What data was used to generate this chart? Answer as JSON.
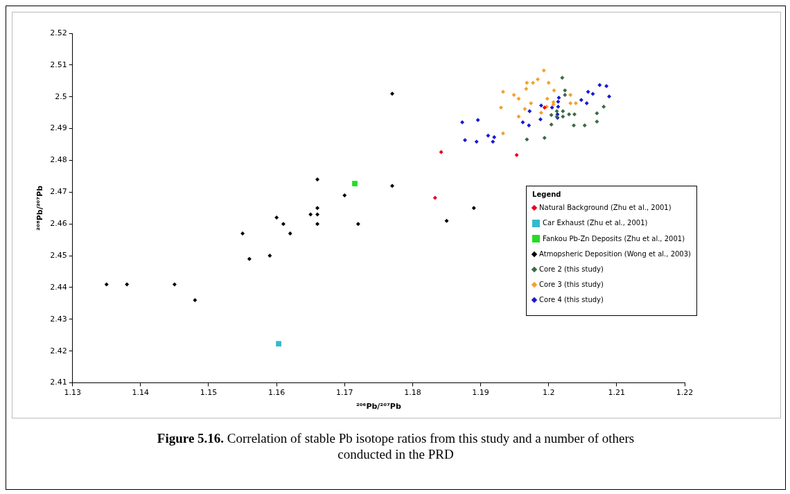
{
  "chart_data": {
    "type": "scatter",
    "title": "Figure 5.16.",
    "subtitle": "Correlation of stable Pb isotope ratios from this study and a number of others conducted in the PRD",
    "xlabel": "²⁰⁶Pb/²⁰⁷Pb",
    "ylabel": "²⁰⁸Pb/²⁰⁷Pb",
    "legend_title": "Legend",
    "legend": "right",
    "grid": false,
    "xlim": [
      1.13,
      1.22
    ],
    "xticks": [
      1.13,
      1.14,
      1.15,
      1.16,
      1.17,
      1.18,
      1.19,
      1.2,
      1.21,
      1.22
    ],
    "ylim": [
      2.41,
      2.52
    ],
    "yticks": [
      2.41,
      2.42,
      2.43,
      2.44,
      2.45,
      2.46,
      2.47,
      2.48,
      2.49,
      2.5,
      2.51,
      2.52
    ],
    "series": [
      {
        "name": "Natural Background (Zhu et al., 2001)",
        "color": "#e8001c",
        "marker": "diamond",
        "x": [
          1.1842,
          1.1833,
          1.1953,
          1.1994
        ],
        "values": [
          2.4826,
          2.4682,
          2.4817,
          2.4966
        ]
      },
      {
        "name": "Car Exhaust (Zhu et al., 2001)",
        "color": "#33bbcc",
        "marker": "square",
        "x": [
          1.1603
        ],
        "values": [
          2.4223
        ]
      },
      {
        "name": "Fankou Pb-Zn Deposits (Zhu et al., 2001)",
        "color": "#22dd22",
        "marker": "square",
        "x": [
          1.1715
        ],
        "values": [
          2.4727
        ]
      },
      {
        "name": "Atmopsheric Deposition (Wong et al., 2003)",
        "color": "#000000",
        "marker": "diamond",
        "x": [
          1.135,
          1.138,
          1.145,
          1.148,
          1.155,
          1.156,
          1.159,
          1.16,
          1.161,
          1.162,
          1.165,
          1.166,
          1.166,
          1.166,
          1.166,
          1.17,
          1.172,
          1.177,
          1.177,
          1.185,
          1.189
        ],
        "values": [
          2.441,
          2.441,
          2.441,
          2.436,
          2.457,
          2.449,
          2.45,
          2.462,
          2.46,
          2.457,
          2.463,
          2.465,
          2.463,
          2.46,
          2.474,
          2.469,
          2.46,
          2.472,
          2.501,
          2.461,
          2.465
        ]
      },
      {
        "name": "Core 2 (this study)",
        "color": "#3a6b45",
        "marker": "diamond",
        "x": [
          1.2024,
          1.2024,
          1.2021,
          1.2021,
          1.2012,
          1.2012,
          1.203,
          1.2038,
          1.2004,
          1.2004,
          1.2037,
          1.2053,
          1.2071,
          1.2071,
          1.2081,
          1.1968,
          1.1994,
          1.202
        ],
        "values": [
          2.502,
          2.5006,
          2.4955,
          2.4938,
          2.4955,
          2.4938,
          2.4945,
          2.4945,
          2.4943,
          2.4913,
          2.491,
          2.491,
          2.4922,
          2.4948,
          2.4969,
          2.4866,
          2.4871,
          2.506
        ]
      },
      {
        "name": "Core 3 (this study)",
        "color": "#f5a030",
        "marker": "diamond",
        "x": [
          1.1968,
          1.1977,
          1.1984,
          1.2,
          1.1967,
          1.1949,
          1.1956,
          1.193,
          1.1974,
          1.2008,
          1.1998,
          1.2007,
          1.2007,
          1.1997,
          1.1989,
          1.1956,
          1.1965,
          1.2032,
          1.2032,
          1.204,
          1.1993,
          1.1933,
          1.1933
        ],
        "values": [
          2.5044,
          2.5044,
          2.5055,
          2.5044,
          2.5025,
          2.5006,
          2.4994,
          2.4966,
          2.498,
          2.502,
          2.4994,
          2.4983,
          2.4976,
          2.4969,
          2.495,
          2.4938,
          2.4962,
          2.5006,
          2.498,
          2.498,
          2.5083,
          2.4885,
          2.5016
        ]
      },
      {
        "name": "Core 4 (this study)",
        "color": "#1a1ad0",
        "marker": "diamond",
        "x": [
          1.2075,
          1.2085,
          1.2089,
          1.2058,
          1.2065,
          1.2048,
          1.2056,
          1.2015,
          1.2014,
          1.2014,
          1.2013,
          1.2013,
          1.2005,
          1.1989,
          1.1988,
          1.1972,
          1.1962,
          1.1971,
          1.1873,
          1.1896,
          1.1911,
          1.192,
          1.1918,
          1.1877,
          1.1894
        ],
        "values": [
          2.5037,
          2.5034,
          2.5001,
          2.5016,
          2.5009,
          2.499,
          2.498,
          2.4997,
          2.4985,
          2.4969,
          2.4945,
          2.4934,
          2.4966,
          2.4973,
          2.4929,
          2.4955,
          2.492,
          2.491,
          2.492,
          2.4927,
          2.4878,
          2.4873,
          2.4859,
          2.4864,
          2.4859
        ]
      }
    ]
  }
}
